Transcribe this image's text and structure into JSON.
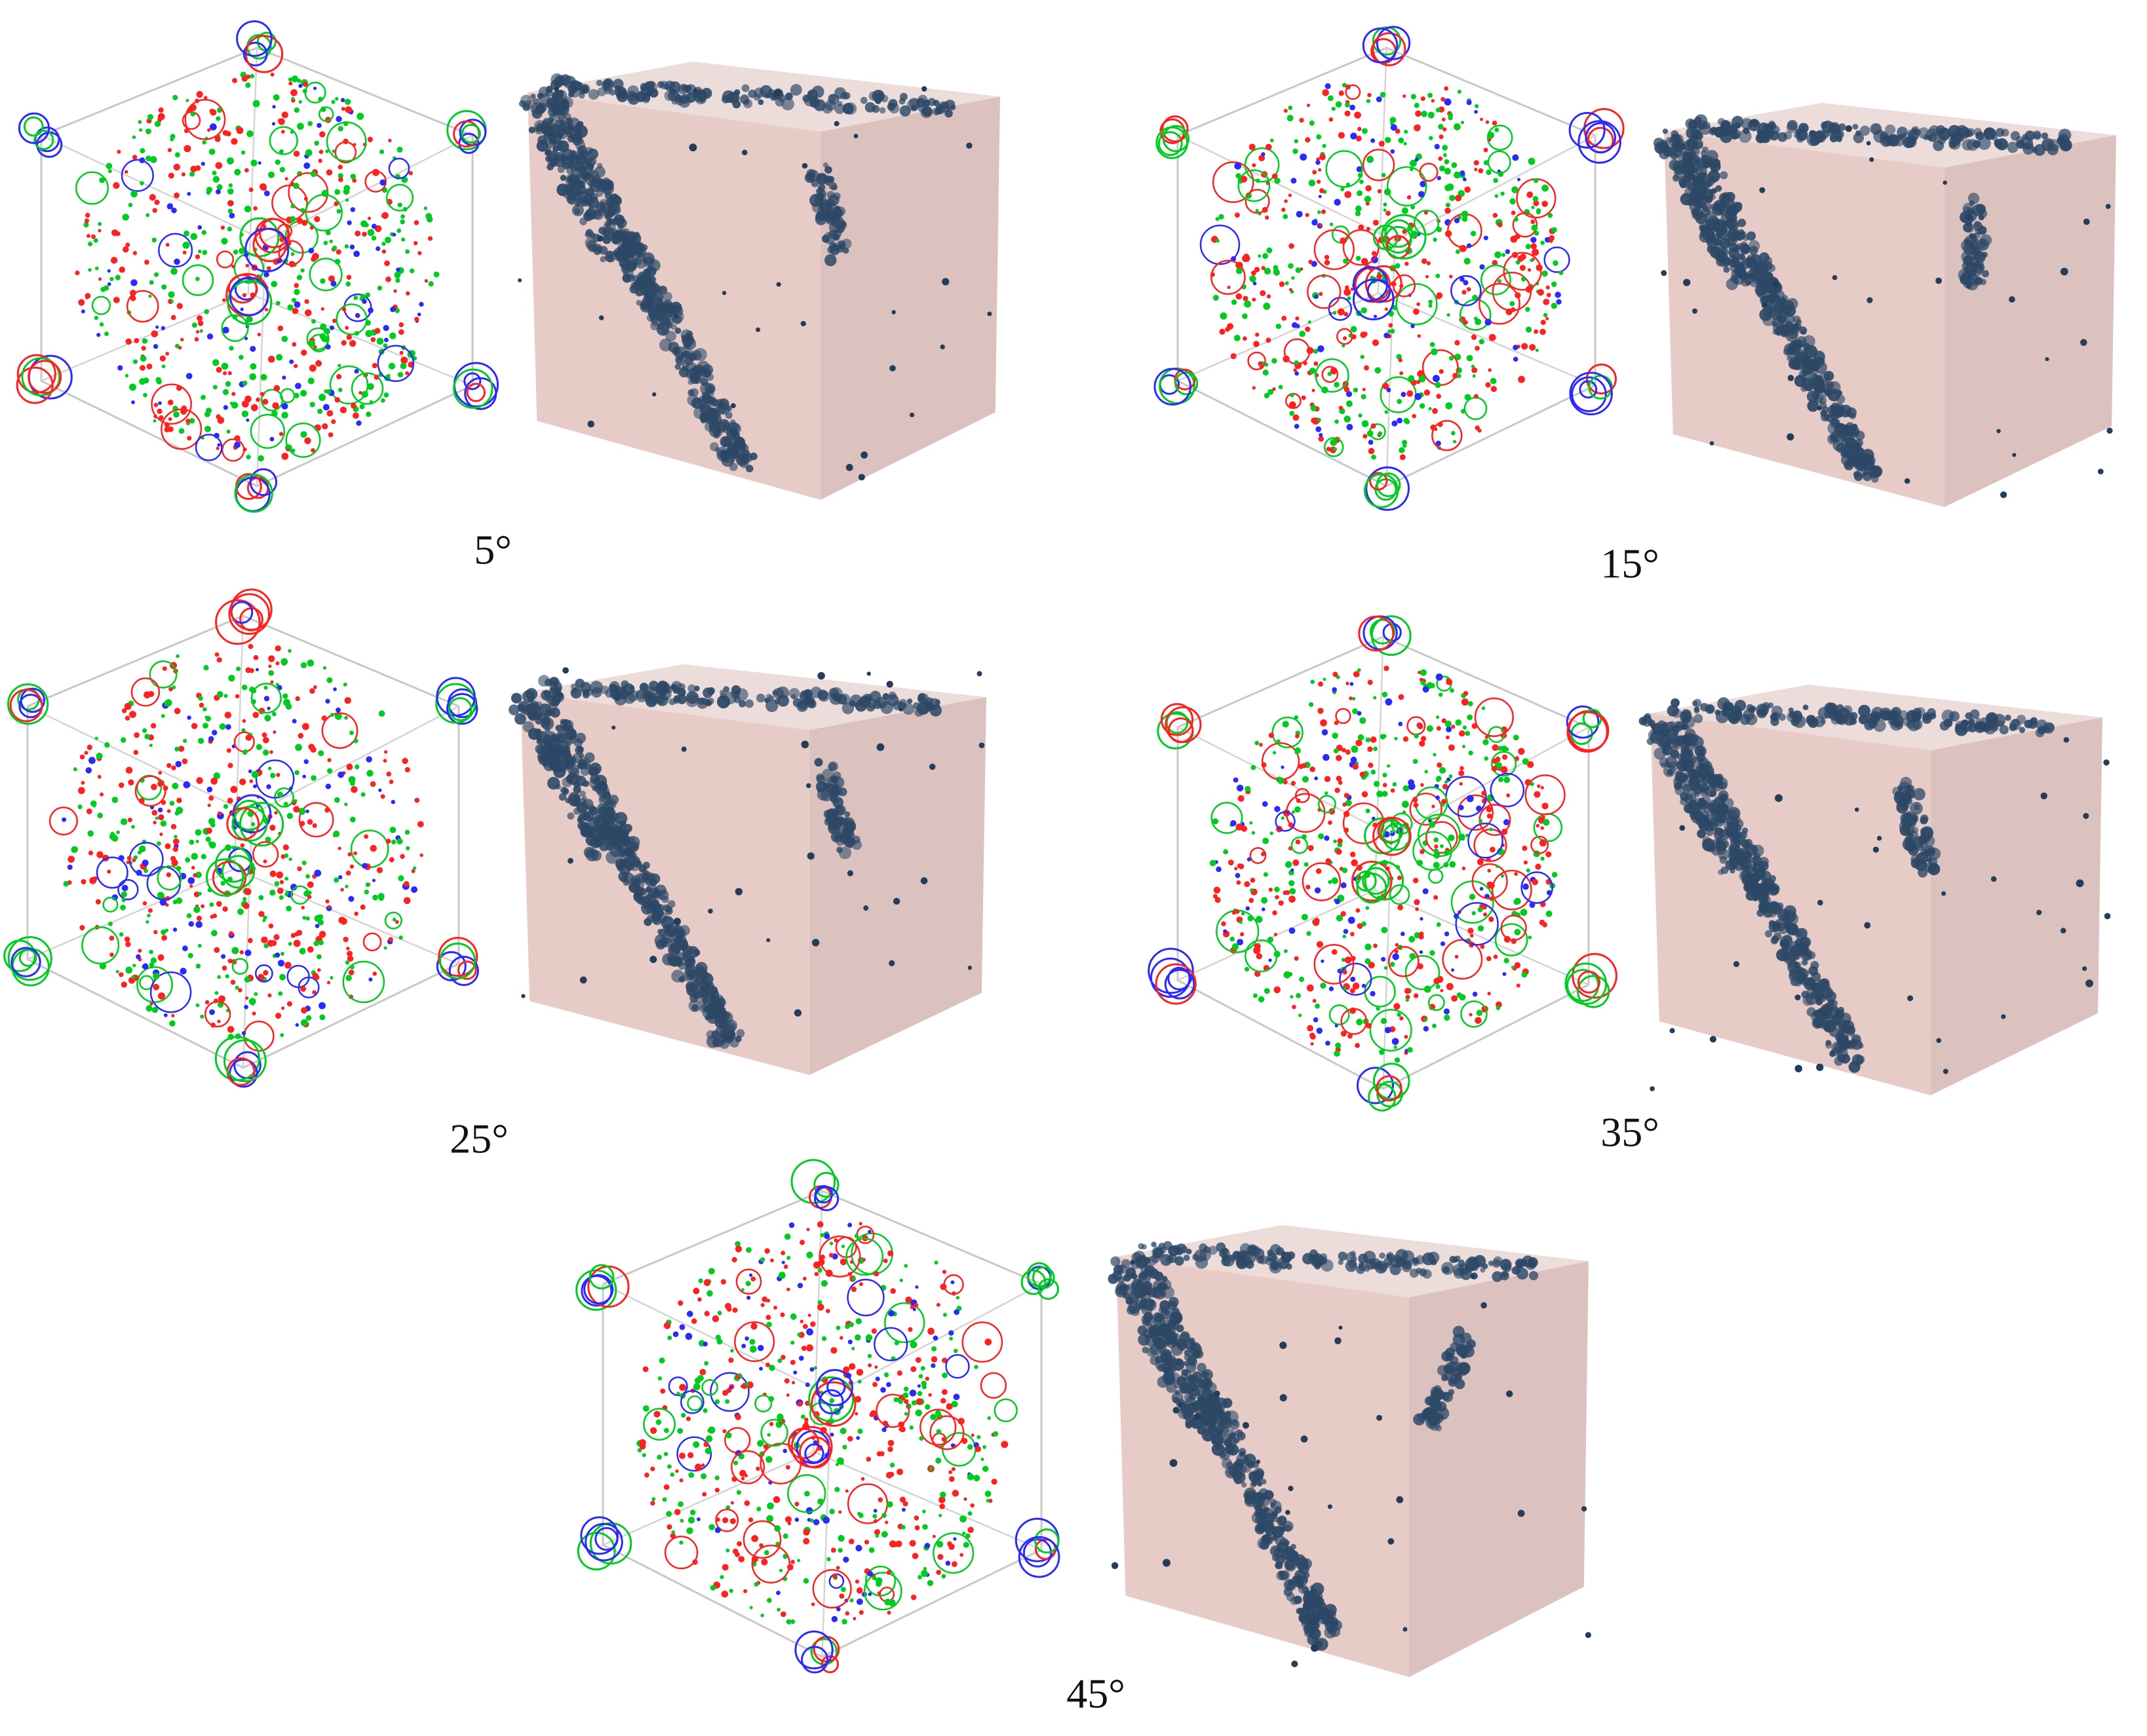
{
  "panels": [
    {
      "label": "5°"
    },
    {
      "label": "15°"
    },
    {
      "label": "25°"
    },
    {
      "label": "35°"
    },
    {
      "label": "45°"
    }
  ]
}
